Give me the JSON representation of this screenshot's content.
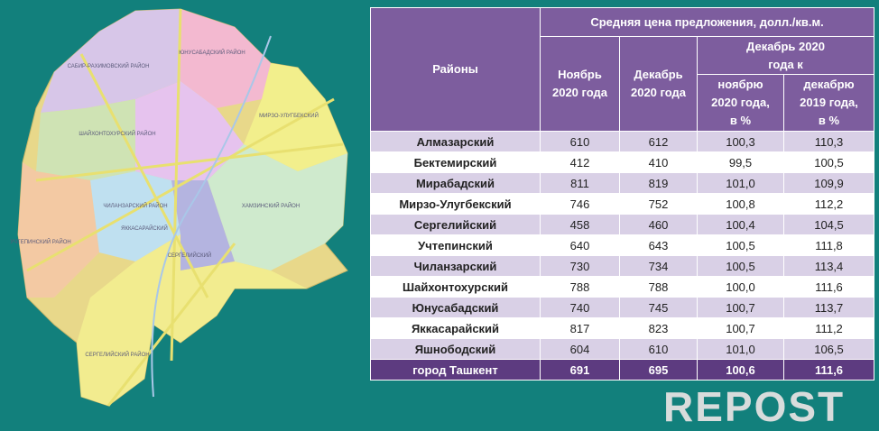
{
  "map": {
    "labels": [
      "САБИР-РАХИМОВСКИЙ РАЙОН",
      "ЮНУСАБАДСКИЙ РАЙОН",
      "МИРЗО-УЛУГБЕКСКИЙ",
      "ШАЙХОНТОХУРСКИЙ РАЙОН",
      "УЧТЕПИНСКИЙ РАЙОН",
      "ЧИЛАНЗАРСКИЙ РАЙОН",
      "ЯККАСАРАЙСКИЙ",
      "СЕРГЕЛИЙСКИЙ",
      "ХАМЗИНСКИЙ РАЙОН",
      "СЕРГЕЛИЙСКИЙ РАЙОН"
    ]
  },
  "table": {
    "header": {
      "title": "Средняя цена предложения, долл./кв.м.",
      "district": "Районы",
      "nov": "Ноябрь 2020 года",
      "dec": "Декабрь 2020 года",
      "change": "Декабрь 2020 года к",
      "vs_nov": "ноябрю 2020 года, в %",
      "vs_dec": "декабрю 2019 года, в %"
    },
    "rows": [
      [
        "Алмазарский",
        "610",
        "612",
        "100,3",
        "110,3"
      ],
      [
        "Бектемирский",
        "412",
        "410",
        "99,5",
        "100,5"
      ],
      [
        "Мирабадский",
        "811",
        "819",
        "101,0",
        "109,9"
      ],
      [
        "Мирзо-Улугбекский",
        "746",
        "752",
        "100,8",
        "112,2"
      ],
      [
        "Сергелийский",
        "458",
        "460",
        "100,4",
        "104,5"
      ],
      [
        "Учтепинский",
        "640",
        "643",
        "100,5",
        "111,8"
      ],
      [
        "Чиланзарский",
        "730",
        "734",
        "100,5",
        "113,4"
      ],
      [
        "Шайхонтохурский",
        "788",
        "788",
        "100,0",
        "111,6"
      ],
      [
        "Юнусабадский",
        "740",
        "745",
        "100,7",
        "113,7"
      ],
      [
        "Яккасарайский",
        "817",
        "823",
        "100,7",
        "111,2"
      ],
      [
        "Яшнободский",
        "604",
        "610",
        "101,0",
        "106,5"
      ]
    ],
    "total": [
      "город Ташкент",
      "691",
      "695",
      "100,6",
      "111,6"
    ]
  },
  "logo": "REPOST"
}
